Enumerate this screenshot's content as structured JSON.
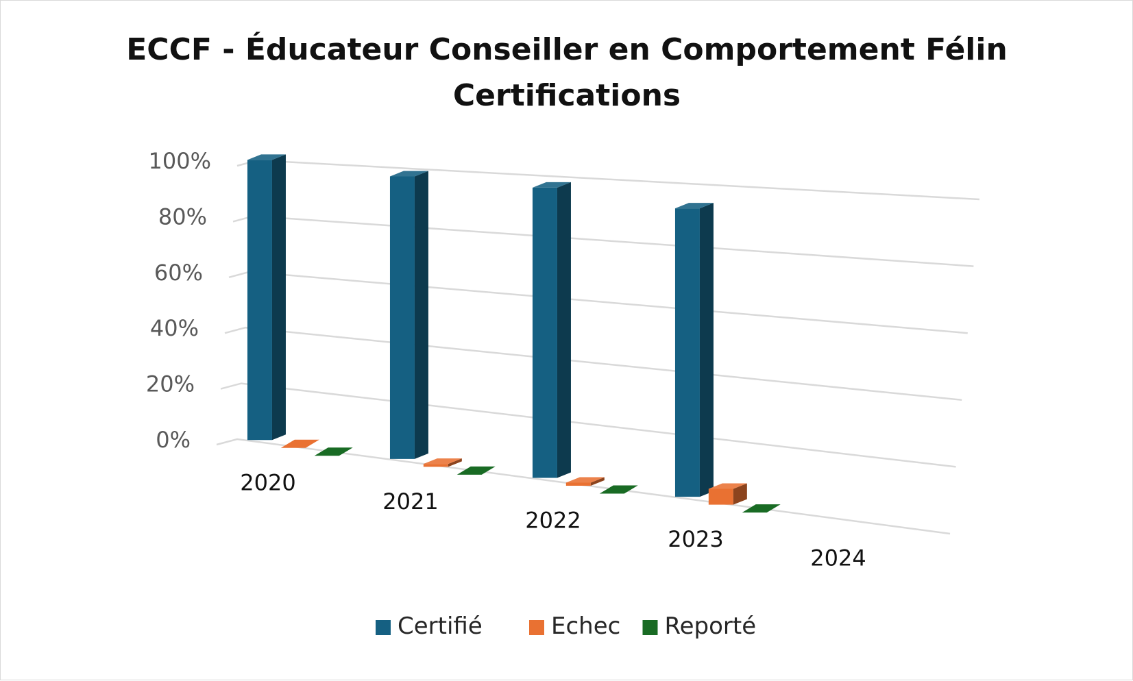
{
  "chart_data": {
    "type": "bar",
    "title": "ECCF - Éducateur Conseiller en Comportement Félin Certifications",
    "title_lines": [
      "ECCF - Éducateur Conseiller en Comportement Félin",
      "Certifications"
    ],
    "categories": [
      "2020",
      "2021",
      "2022",
      "2023",
      "2024"
    ],
    "series": [
      {
        "name": "Certifié",
        "color": "#156082",
        "values": [
          100,
          97,
          96,
          92,
          null
        ]
      },
      {
        "name": "Echec",
        "color": "#e97132",
        "values": [
          0,
          1,
          1,
          5,
          null
        ]
      },
      {
        "name": "Reporté",
        "color": "#196b24",
        "values": [
          0,
          0,
          0,
          0,
          null
        ]
      }
    ],
    "ylim": [
      0,
      100
    ],
    "y_ticks": [
      "0%",
      "20%",
      "40%",
      "60%",
      "80%",
      "100%"
    ],
    "y_unit": "%",
    "grid": true,
    "legend_position": "bottom",
    "style": "3d-clustered-column"
  }
}
